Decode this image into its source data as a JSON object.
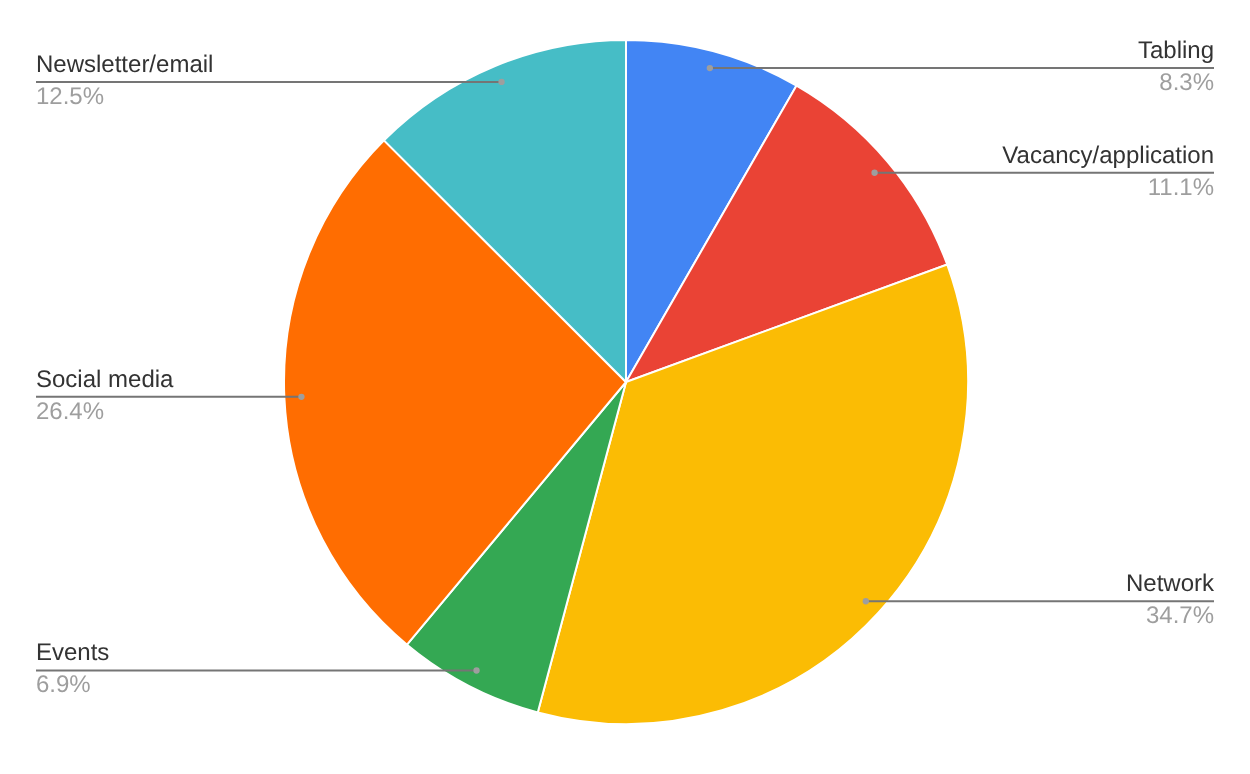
{
  "chart_data": {
    "type": "pie",
    "categories": [
      "Tabling",
      "Vacancy/application",
      "Network",
      "Events",
      "Social media",
      "Newsletter/email"
    ],
    "values": [
      8.3,
      11.1,
      34.7,
      6.9,
      26.4,
      12.5
    ],
    "colors": [
      "#4285f4",
      "#ea4335",
      "#fbbc04",
      "#34a853",
      "#ff6d01",
      "#46bdc6"
    ],
    "value_labels": [
      "8.3%",
      "11.1%",
      "34.7%",
      "6.9%",
      "26.4%",
      "12.5%"
    ]
  }
}
